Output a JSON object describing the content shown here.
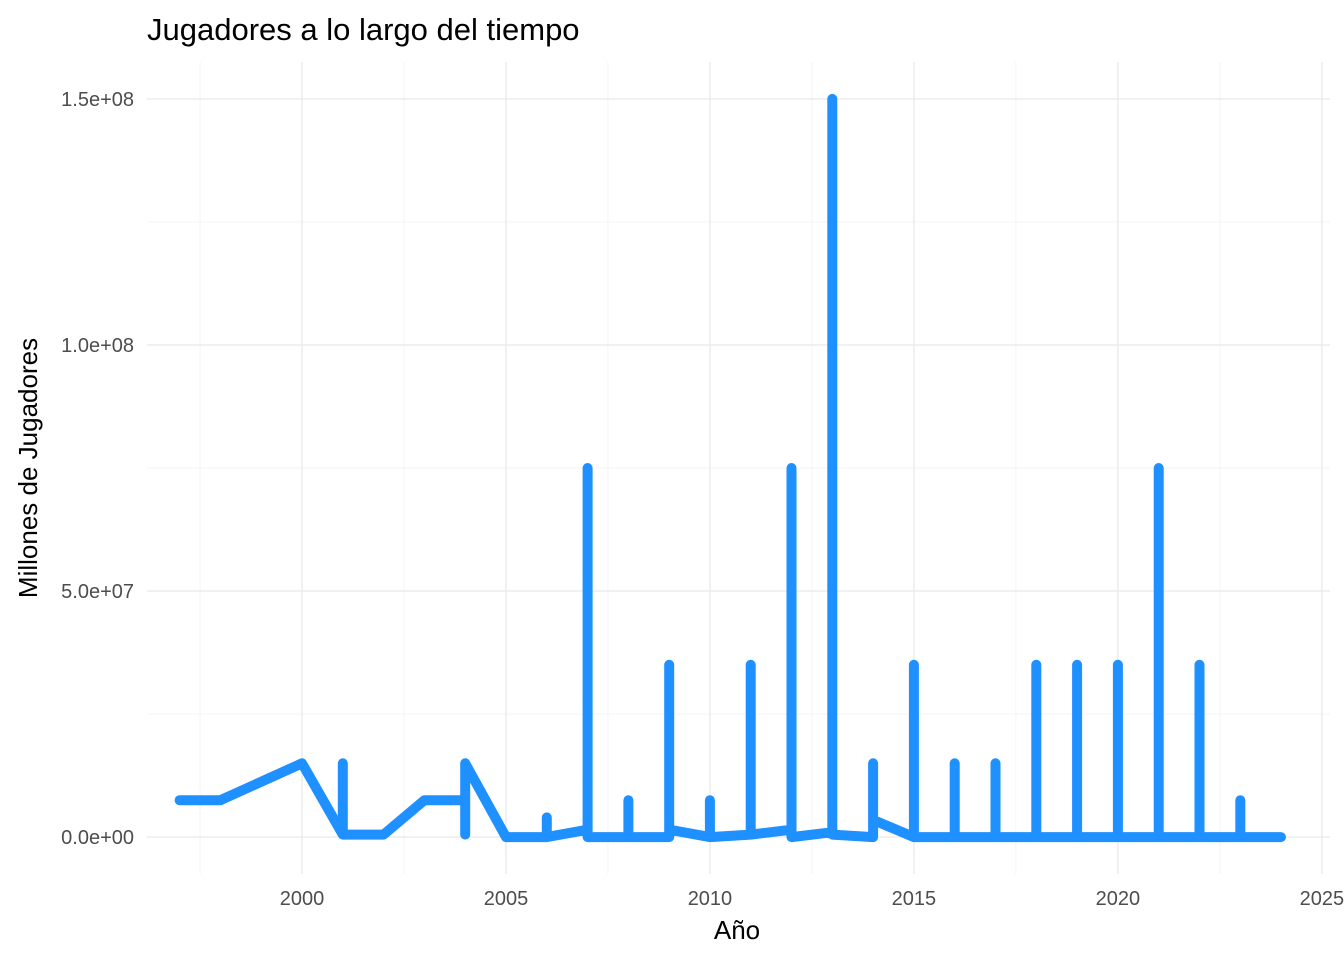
{
  "chart_data": {
    "type": "line",
    "title": "Jugadores a lo largo del tiempo",
    "xlabel": "Año",
    "ylabel": "Millones de Jugadores",
    "xlim": [
      1996.2,
      2025.2
    ],
    "ylim": [
      -7500000,
      157500000
    ],
    "x_ticks": [
      2000,
      2005,
      2010,
      2015,
      2020,
      2025
    ],
    "x_tick_labels": [
      "2000",
      "2005",
      "2010",
      "2015",
      "2020",
      "2025"
    ],
    "y_ticks": [
      0,
      50000000,
      100000000,
      150000000
    ],
    "y_tick_labels": [
      "0.0e+00",
      "5.0e+07",
      "1.0e+08",
      "1.5e+08"
    ],
    "grid": true,
    "legend": "none",
    "series": [
      {
        "color": "#1e90ff",
        "points": [
          [
            1997,
            7500000
          ],
          [
            1998,
            7500000
          ],
          [
            2000,
            15000000
          ],
          [
            2001,
            500000
          ],
          [
            2001,
            15000000
          ],
          [
            2001,
            500000
          ],
          [
            2002,
            500000
          ],
          [
            2003,
            7500000
          ],
          [
            2004,
            7500000
          ],
          [
            2004,
            500000
          ],
          [
            2004,
            15000000
          ],
          [
            2005,
            0
          ],
          [
            2006,
            0
          ],
          [
            2006,
            4000000
          ],
          [
            2006,
            0
          ],
          [
            2007,
            1500000
          ],
          [
            2007,
            75000000
          ],
          [
            2007,
            0
          ],
          [
            2008,
            0
          ],
          [
            2008,
            7500000
          ],
          [
            2008,
            0
          ],
          [
            2009,
            0
          ],
          [
            2009,
            35000000
          ],
          [
            2009,
            1500000
          ],
          [
            2010,
            0
          ],
          [
            2010,
            7500000
          ],
          [
            2010,
            0
          ],
          [
            2011,
            500000
          ],
          [
            2011,
            35000000
          ],
          [
            2011,
            500000
          ],
          [
            2012,
            1500000
          ],
          [
            2012,
            75000000
          ],
          [
            2012,
            0
          ],
          [
            2013,
            1000000
          ],
          [
            2013,
            150000000
          ],
          [
            2013,
            500000
          ],
          [
            2014,
            0
          ],
          [
            2014,
            15000000
          ],
          [
            2014,
            3500000
          ],
          [
            2015,
            0
          ],
          [
            2015,
            35000000
          ],
          [
            2015,
            0
          ],
          [
            2016,
            0
          ],
          [
            2016,
            15000000
          ],
          [
            2016,
            0
          ],
          [
            2017,
            0
          ],
          [
            2017,
            15000000
          ],
          [
            2017,
            0
          ],
          [
            2018,
            0
          ],
          [
            2018,
            35000000
          ],
          [
            2018,
            0
          ],
          [
            2019,
            0
          ],
          [
            2019,
            35000000
          ],
          [
            2019,
            0
          ],
          [
            2020,
            0
          ],
          [
            2020,
            35000000
          ],
          [
            2020,
            0
          ],
          [
            2021,
            0
          ],
          [
            2021,
            75000000
          ],
          [
            2021,
            0
          ],
          [
            2022,
            0
          ],
          [
            2022,
            35000000
          ],
          [
            2022,
            0
          ],
          [
            2023,
            0
          ],
          [
            2023,
            7500000
          ],
          [
            2023,
            0
          ],
          [
            2024,
            0
          ]
        ]
      }
    ]
  }
}
